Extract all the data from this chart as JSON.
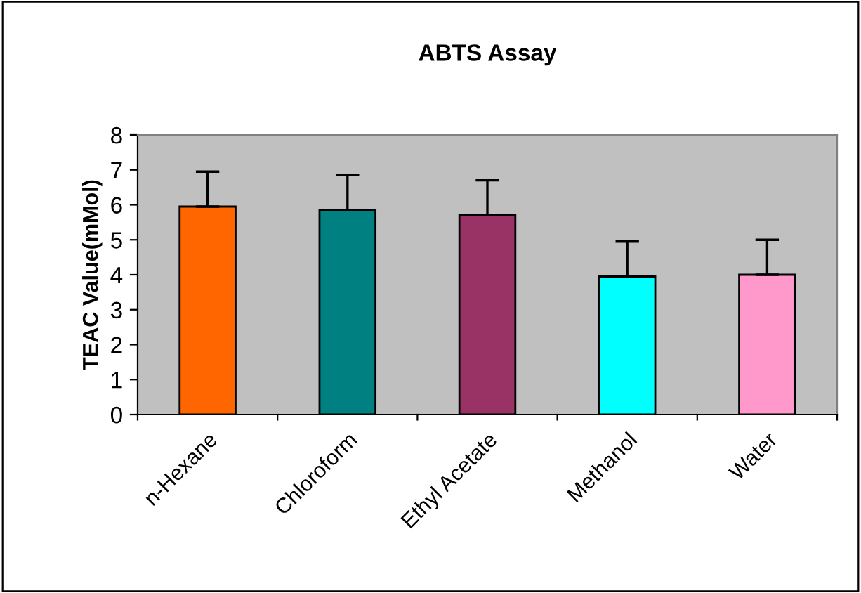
{
  "chart_data": {
    "type": "bar",
    "title": "ABTS Assay",
    "ylabel": "TEAC Value(mMol)",
    "categories": [
      "n-Hexane",
      "Chloroform",
      "Ethyl Acetate",
      "Methanol",
      "Water"
    ],
    "values": [
      5.95,
      5.85,
      5.7,
      3.95,
      4.0
    ],
    "colors": [
      "#ff6600",
      "#008080",
      "#993366",
      "#00ffff",
      "#ff99cc"
    ],
    "errors": [
      [
        5.95,
        6.95
      ],
      [
        5.85,
        6.85
      ],
      [
        5.7,
        6.7
      ],
      [
        3.95,
        4.95
      ],
      [
        4.0,
        5.0
      ]
    ],
    "ylim": [
      0,
      8
    ],
    "yticks": [
      0,
      1,
      2,
      3,
      4,
      5,
      6,
      7,
      8
    ],
    "grid": false,
    "legend": false
  }
}
